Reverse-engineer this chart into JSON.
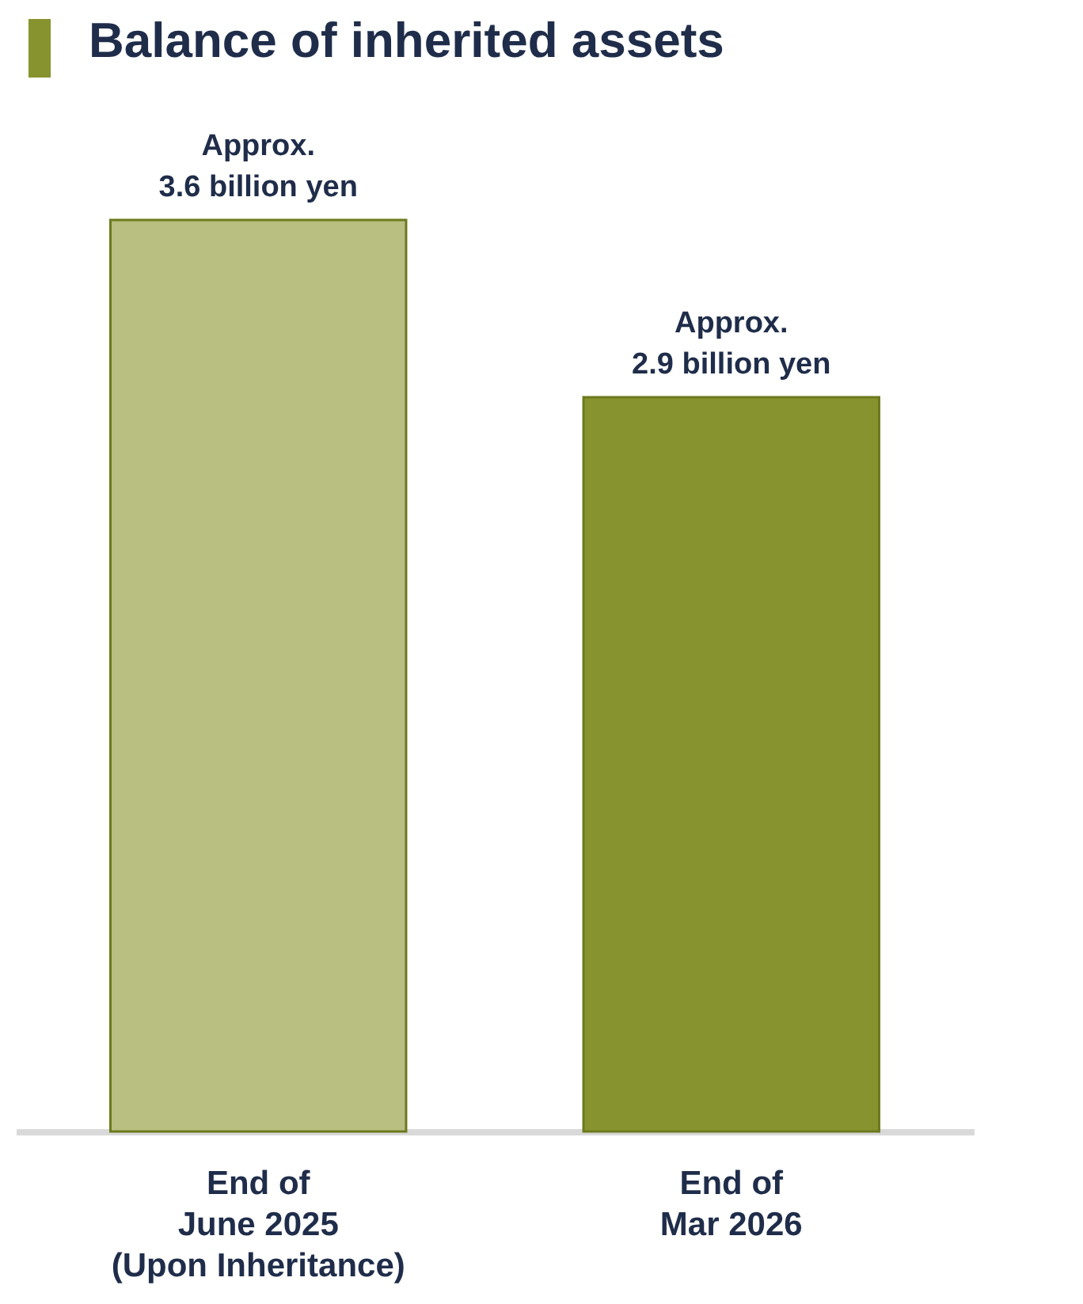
{
  "chart_data": {
    "type": "bar",
    "title": "Balance of inherited assets",
    "categories": [
      "End of\nJune 2025\n(Upon Inheritance)",
      "End of\nMar 2026"
    ],
    "values": [
      3.6,
      2.9
    ],
    "colors": [
      "#b8bf80",
      "#87932e"
    ],
    "value_labels": [
      "Approx.\n3.6 billion yen",
      "Approx.\n2.9 billion yen"
    ],
    "grid": false
  }
}
